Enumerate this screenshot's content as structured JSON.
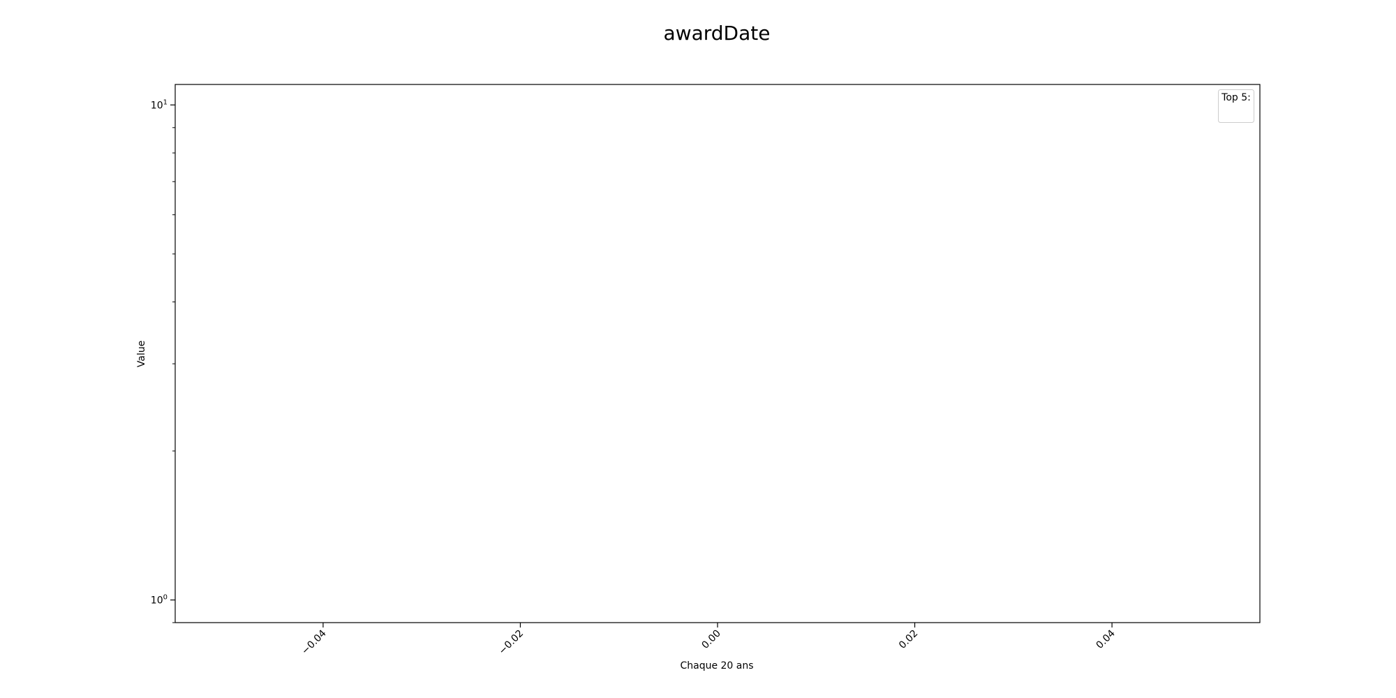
{
  "chart_data": {
    "type": "line",
    "title": "awardDate",
    "xlabel": "Chaque 20 ans",
    "ylabel": "Value",
    "xlim": [
      -0.055,
      0.055
    ],
    "x_ticks": [
      -0.04,
      -0.02,
      0.0,
      0.02,
      0.04
    ],
    "x_tick_labels": [
      "−0.04",
      "−0.02",
      "0.00",
      "0.02",
      "0.04"
    ],
    "x_tick_rotation_deg": 45,
    "yscale": "log",
    "ylim": [
      0.9,
      11
    ],
    "y_major_ticks": [
      1,
      10
    ],
    "y_tick_labels": [
      {
        "base": "10",
        "exp": "0"
      },
      {
        "base": "10",
        "exp": "1"
      }
    ],
    "y_minor_ticks": [
      0.9,
      2,
      3,
      4,
      5,
      6,
      7,
      8,
      9
    ],
    "grid": false,
    "legend": {
      "title": "Top 5:",
      "placement": "upper right",
      "entries": []
    },
    "series": []
  }
}
